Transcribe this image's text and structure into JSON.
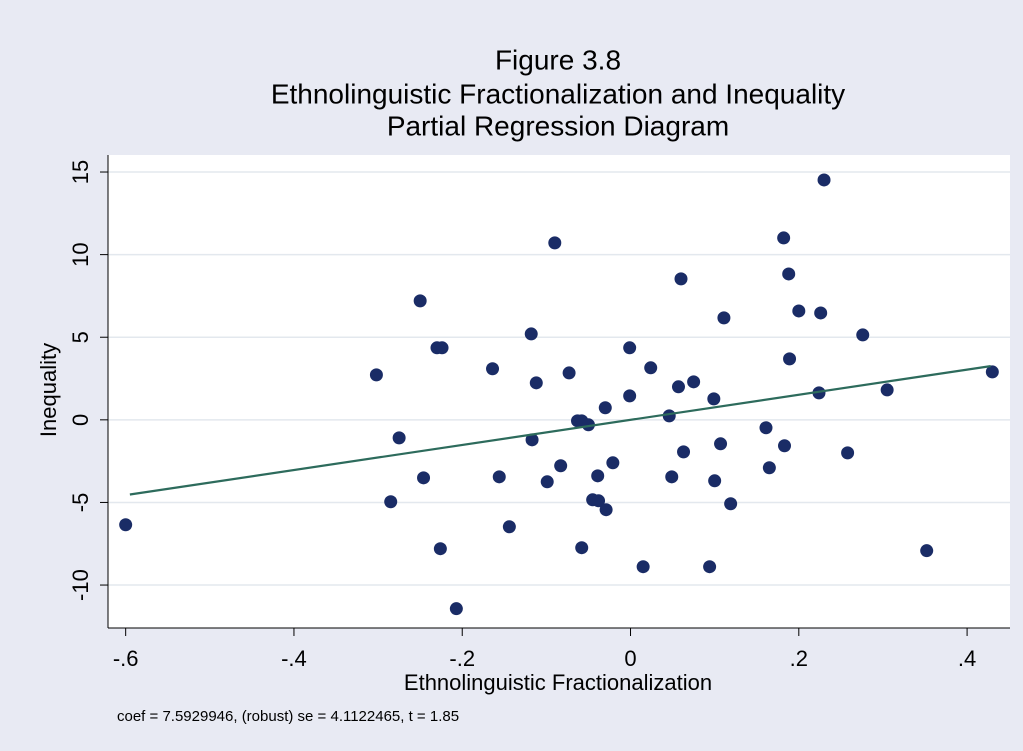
{
  "chart_data": {
    "type": "scatter",
    "title": [
      "Figure 3.8",
      "Ethnolinguistic Fractionalization and Inequality",
      "Partial Regression Diagram"
    ],
    "xlabel": "Ethnolinguistic Fractionalization",
    "ylabel": "Inequality",
    "note": "coef = 7.5929946, (robust) se = 4.1122465, t = 1.85",
    "x": [
      -0.6,
      -0.302,
      -0.285,
      -0.275,
      -0.25,
      -0.246,
      -0.23,
      -0.224,
      -0.226,
      -0.207,
      -0.164,
      -0.156,
      -0.144,
      -0.118,
      -0.117,
      -0.112,
      -0.09,
      -0.099,
      -0.083,
      -0.073,
      -0.063,
      -0.058,
      -0.058,
      -0.05,
      -0.045,
      -0.038,
      -0.039,
      -0.03,
      -0.029,
      -0.021,
      -0.001,
      -0.001,
      0.015,
      0.024,
      0.046,
      0.049,
      0.057,
      0.06,
      0.063,
      0.075,
      0.094,
      0.099,
      0.1,
      0.107,
      0.111,
      0.119,
      0.161,
      0.165,
      0.182,
      0.183,
      0.188,
      0.189,
      0.2,
      0.224,
      0.226,
      0.23,
      0.258,
      0.276,
      0.305,
      0.352,
      0.43
    ],
    "values": [
      -6.35,
      2.72,
      -4.96,
      -1.09,
      7.2,
      -3.51,
      4.36,
      4.36,
      -7.8,
      -11.43,
      3.09,
      -3.45,
      -6.47,
      5.2,
      -1.21,
      2.24,
      10.71,
      -3.75,
      -2.78,
      2.84,
      -0.06,
      -0.06,
      -7.74,
      -0.3,
      -4.84,
      -4.9,
      -3.39,
      0.73,
      -5.44,
      -2.6,
      4.36,
      1.45,
      -8.89,
      3.15,
      0.24,
      -3.45,
      2.0,
      8.53,
      -1.94,
      2.3,
      -8.89,
      1.27,
      -3.69,
      -1.45,
      6.17,
      -5.08,
      -0.48,
      -2.9,
      11.01,
      -1.57,
      8.83,
      3.69,
      6.59,
      1.63,
      6.47,
      14.52,
      -2.0,
      5.14,
      1.81,
      -7.92,
      2.9
    ],
    "color": "#1a2c66",
    "fit": {
      "x": [
        -0.595,
        0.428
      ],
      "values": [
        -4.52,
        3.25
      ],
      "color": "#2d6b5c"
    },
    "xlim": [
      -0.621,
      0.451
    ],
    "ylim": [
      -12.6,
      16.03
    ],
    "xticks": [
      {
        "value": -0.6,
        "label": "-.6"
      },
      {
        "value": -0.4,
        "label": "-.4"
      },
      {
        "value": -0.2,
        "label": "-.2"
      },
      0,
      {
        "value": 0.2,
        "label": ".2"
      },
      {
        "value": 0.4,
        "label": ".4"
      }
    ],
    "yticks": [
      -10,
      -5,
      0,
      5,
      10,
      15
    ],
    "grid": true
  }
}
